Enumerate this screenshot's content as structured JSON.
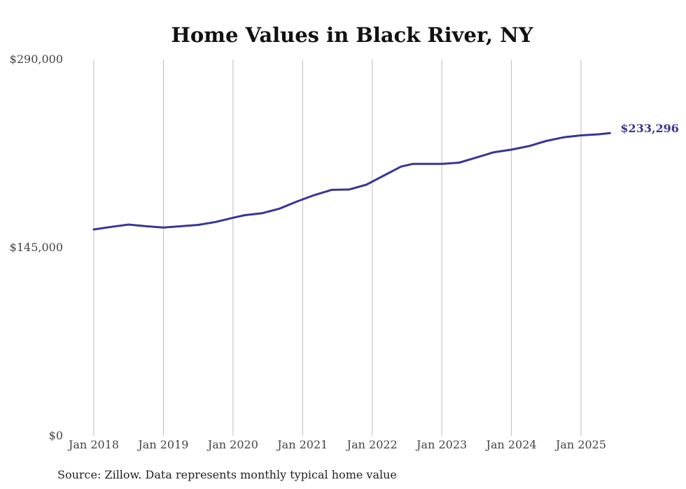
{
  "colors": {
    "series": "#3a3596",
    "grid": "#bdbdbd"
  },
  "chart_data": {
    "type": "line",
    "title": "Home Values in Black River, NY",
    "xlabel": "",
    "ylabel": "",
    "ylim": [
      0,
      290000
    ],
    "y_ticks": [
      {
        "value": 0,
        "label": "$0"
      },
      {
        "value": 145000,
        "label": "$145,000"
      },
      {
        "value": 290000,
        "label": "$290,000"
      }
    ],
    "x_ticks": [
      {
        "value": "2018-01",
        "label": "Jan 2018"
      },
      {
        "value": "2019-01",
        "label": "Jan 2019"
      },
      {
        "value": "2020-01",
        "label": "Jan 2020"
      },
      {
        "value": "2021-01",
        "label": "Jan 2021"
      },
      {
        "value": "2022-01",
        "label": "Jan 2022"
      },
      {
        "value": "2023-01",
        "label": "Jan 2023"
      },
      {
        "value": "2024-01",
        "label": "Jan 2024"
      },
      {
        "value": "2025-01",
        "label": "Jan 2025"
      }
    ],
    "xlim": [
      "2018-01",
      "2025-06"
    ],
    "grid": "vertical",
    "series": [
      {
        "x": [
          "2018-01",
          "2018-04",
          "2018-07",
          "2018-10",
          "2019-01",
          "2019-04",
          "2019-07",
          "2019-10",
          "2020-01",
          "2020-03",
          "2020-06",
          "2020-09",
          "2020-12",
          "2021-03",
          "2021-06",
          "2021-09",
          "2021-12",
          "2022-03",
          "2022-06",
          "2022-08",
          "2022-10",
          "2023-01",
          "2023-04",
          "2023-07",
          "2023-10",
          "2024-01",
          "2024-04",
          "2024-07",
          "2024-10",
          "2025-01",
          "2025-04",
          "2025-06"
        ],
        "y": [
          159000,
          161000,
          162800,
          161500,
          160500,
          161500,
          162500,
          164800,
          168000,
          170000,
          171500,
          175000,
          180500,
          185500,
          189500,
          189800,
          193500,
          200500,
          207500,
          209500,
          209500,
          209500,
          210500,
          214500,
          218500,
          220500,
          223200,
          227200,
          230000,
          231500,
          232300,
          233296
        ],
        "end_label": "$233,296"
      }
    ],
    "source": "Source: Zillow. Data represents monthly typical home value"
  }
}
